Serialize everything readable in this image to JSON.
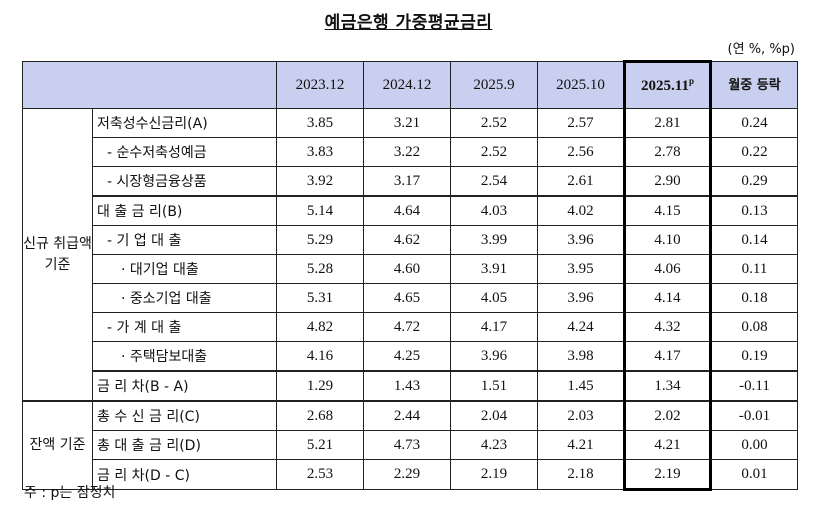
{
  "title": "예금은행 가중평균금리",
  "unit": "(연 %, %p)",
  "columns": [
    "2023.12",
    "2024.12",
    "2025.9",
    "2025.10",
    "2025.11",
    "월중 등락"
  ],
  "highlight_sup": "p",
  "groups": {
    "new": "신규 취급액 기준",
    "balance": "잔액 기준"
  },
  "rows": [
    {
      "label": "저축성수신금리(A)",
      "values": [
        "3.85",
        "3.21",
        "2.52",
        "2.57",
        "2.81",
        "0.24"
      ]
    },
    {
      "label": "- 순수저축성예금",
      "values": [
        "3.83",
        "3.22",
        "2.52",
        "2.56",
        "2.78",
        "0.22"
      ]
    },
    {
      "label": "- 시장형금융상품",
      "values": [
        "3.92",
        "3.17",
        "2.54",
        "2.61",
        "2.90",
        "0.29"
      ]
    },
    {
      "label": "대 출 금 리(B)",
      "values": [
        "5.14",
        "4.64",
        "4.03",
        "4.02",
        "4.15",
        "0.13"
      ]
    },
    {
      "label": "- 기 업 대 출",
      "values": [
        "5.29",
        "4.62",
        "3.99",
        "3.96",
        "4.10",
        "0.14"
      ]
    },
    {
      "label": "· 대기업 대출",
      "values": [
        "5.28",
        "4.60",
        "3.91",
        "3.95",
        "4.06",
        "0.11"
      ]
    },
    {
      "label": "· 중소기업 대출",
      "values": [
        "5.31",
        "4.65",
        "4.05",
        "3.96",
        "4.14",
        "0.18"
      ]
    },
    {
      "label": "- 가 계 대 출",
      "values": [
        "4.82",
        "4.72",
        "4.17",
        "4.24",
        "4.32",
        "0.08"
      ]
    },
    {
      "label": "· 주택담보대출",
      "values": [
        "4.16",
        "4.25",
        "3.96",
        "3.98",
        "4.17",
        "0.19"
      ]
    },
    {
      "label": "금 리 차(B - A)",
      "values": [
        "1.29",
        "1.43",
        "1.51",
        "1.45",
        "1.34",
        "-0.11"
      ]
    },
    {
      "label": "총 수 신 금 리(C)",
      "values": [
        "2.68",
        "2.44",
        "2.04",
        "2.03",
        "2.02",
        "-0.01"
      ]
    },
    {
      "label": "총 대 출 금 리(D)",
      "values": [
        "5.21",
        "4.73",
        "4.23",
        "4.21",
        "4.21",
        "0.00"
      ]
    },
    {
      "label": "금 리 차(D - C)",
      "values": [
        "2.53",
        "2.29",
        "2.19",
        "2.18",
        "2.19",
        "0.01"
      ]
    }
  ],
  "note": "주 : p는 잠정치"
}
